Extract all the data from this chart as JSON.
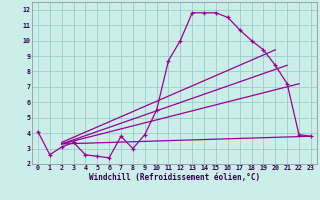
{
  "xlabel": "Windchill (Refroidissement éolien,°C)",
  "bg_color": "#cceee8",
  "grid_color": "#99cccc",
  "line_color": "#990099",
  "xlim": [
    -0.5,
    23.5
  ],
  "ylim": [
    2,
    12.5
  ],
  "xticks": [
    0,
    1,
    2,
    3,
    4,
    5,
    6,
    7,
    8,
    9,
    10,
    11,
    12,
    13,
    14,
    15,
    16,
    17,
    18,
    19,
    20,
    21,
    22,
    23
  ],
  "yticks": [
    2,
    3,
    4,
    5,
    6,
    7,
    8,
    9,
    10,
    11,
    12
  ],
  "curve1_x": [
    0,
    1,
    2,
    3,
    4,
    5,
    6,
    7,
    8,
    9,
    10,
    11,
    12,
    13,
    14,
    15,
    16,
    17,
    18,
    19,
    20,
    21,
    22,
    23
  ],
  "curve1_y": [
    4.1,
    2.6,
    3.1,
    3.4,
    2.6,
    2.5,
    2.4,
    3.8,
    3.0,
    3.9,
    5.5,
    8.7,
    10.0,
    11.8,
    11.8,
    11.8,
    11.5,
    10.7,
    10.0,
    9.4,
    8.4,
    7.2,
    3.9,
    3.8
  ],
  "line2_x": [
    2,
    20
  ],
  "line2_y": [
    3.4,
    9.4
  ],
  "line3_x": [
    2,
    21
  ],
  "line3_y": [
    3.3,
    8.4
  ],
  "line4_x": [
    2,
    22
  ],
  "line4_y": [
    3.3,
    7.2
  ],
  "hline_x": [
    2,
    23
  ],
  "hline_y": [
    3.3,
    3.8
  ]
}
